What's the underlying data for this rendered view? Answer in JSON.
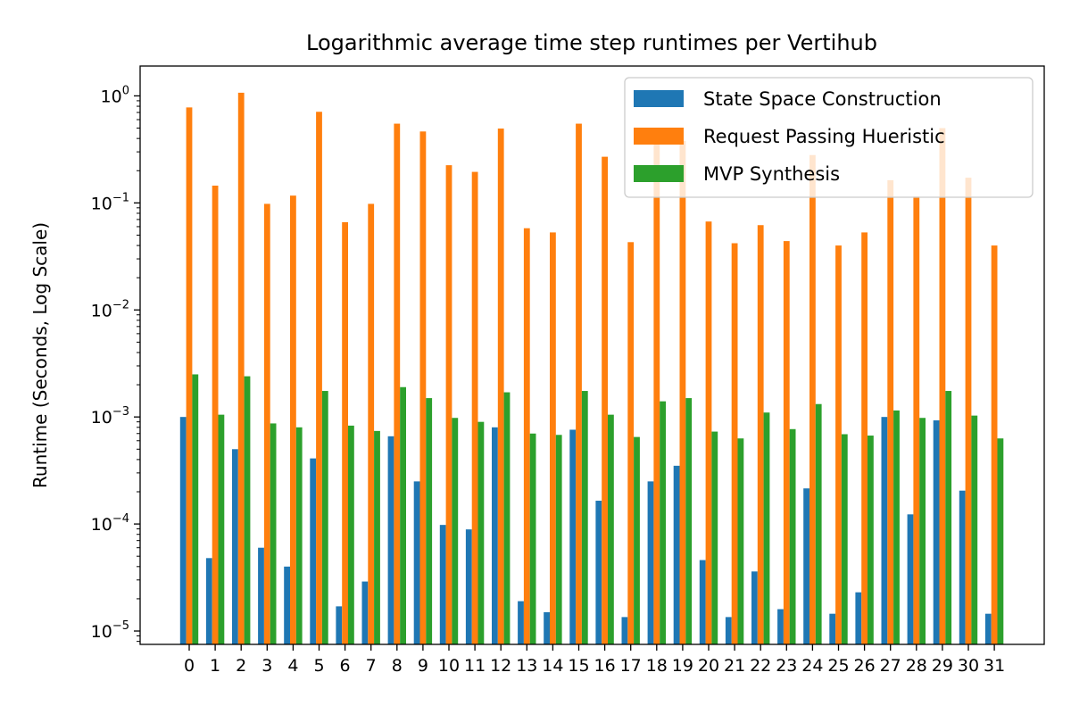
{
  "chart_data": {
    "type": "bar",
    "title": "Logarithmic average time step runtimes per Vertihub",
    "xlabel": "",
    "ylabel": "Runtime (Seconds, Log Scale)",
    "yscale": "log",
    "ylim": [
      7.5e-06,
      1.9
    ],
    "grid": false,
    "legend_position": "top-right",
    "categories": [
      "0",
      "1",
      "2",
      "3",
      "4",
      "5",
      "6",
      "7",
      "8",
      "9",
      "10",
      "11",
      "12",
      "13",
      "14",
      "15",
      "16",
      "17",
      "18",
      "19",
      "20",
      "21",
      "22",
      "23",
      "24",
      "25",
      "26",
      "27",
      "28",
      "29",
      "30",
      "31"
    ],
    "yticks": [
      {
        "value": 1e-05,
        "base": "10",
        "exp": "−5"
      },
      {
        "value": 0.0001,
        "base": "10",
        "exp": "−4"
      },
      {
        "value": 0.001,
        "base": "10",
        "exp": "−3"
      },
      {
        "value": 0.01,
        "base": "10",
        "exp": "−2"
      },
      {
        "value": 0.1,
        "base": "10",
        "exp": "−1"
      },
      {
        "value": 1,
        "base": "10",
        "exp": "0"
      }
    ],
    "series": [
      {
        "name": "State Space Construction",
        "color": "#1f77b4",
        "values": [
          0.001,
          4.8e-05,
          0.0005,
          6e-05,
          4e-05,
          0.00041,
          1.7e-05,
          2.9e-05,
          0.00066,
          0.00025,
          9.8e-05,
          8.9e-05,
          0.0008,
          1.9e-05,
          1.5e-05,
          0.00076,
          0.000165,
          1.35e-05,
          0.00025,
          0.00035,
          4.6e-05,
          1.35e-05,
          3.6e-05,
          1.6e-05,
          0.000215,
          1.45e-05,
          2.3e-05,
          0.001,
          0.000123,
          0.00093,
          0.000205,
          1.45e-05
        ]
      },
      {
        "name": "Request Passing Hueristic",
        "color": "#ff7f0e",
        "values": [
          0.78,
          0.145,
          1.07,
          0.098,
          0.117,
          0.71,
          0.066,
          0.098,
          0.55,
          0.465,
          0.225,
          0.195,
          0.495,
          0.058,
          0.053,
          0.55,
          0.27,
          0.043,
          0.5,
          0.38,
          0.067,
          0.042,
          0.062,
          0.044,
          0.28,
          0.04,
          0.053,
          0.163,
          0.115,
          0.5,
          0.172,
          0.04
        ]
      },
      {
        "name": "MVP Synthesis",
        "color": "#2ca02c",
        "values": [
          0.0025,
          0.00105,
          0.0024,
          0.00087,
          0.0008,
          0.00175,
          0.00083,
          0.00074,
          0.0019,
          0.0015,
          0.00098,
          0.0009,
          0.0017,
          0.0007,
          0.00068,
          0.00175,
          0.00105,
          0.00065,
          0.0014,
          0.0015,
          0.00073,
          0.00063,
          0.0011,
          0.00077,
          0.00132,
          0.00069,
          0.00067,
          0.00115,
          0.00098,
          0.00175,
          0.00103,
          0.00063
        ]
      }
    ]
  }
}
